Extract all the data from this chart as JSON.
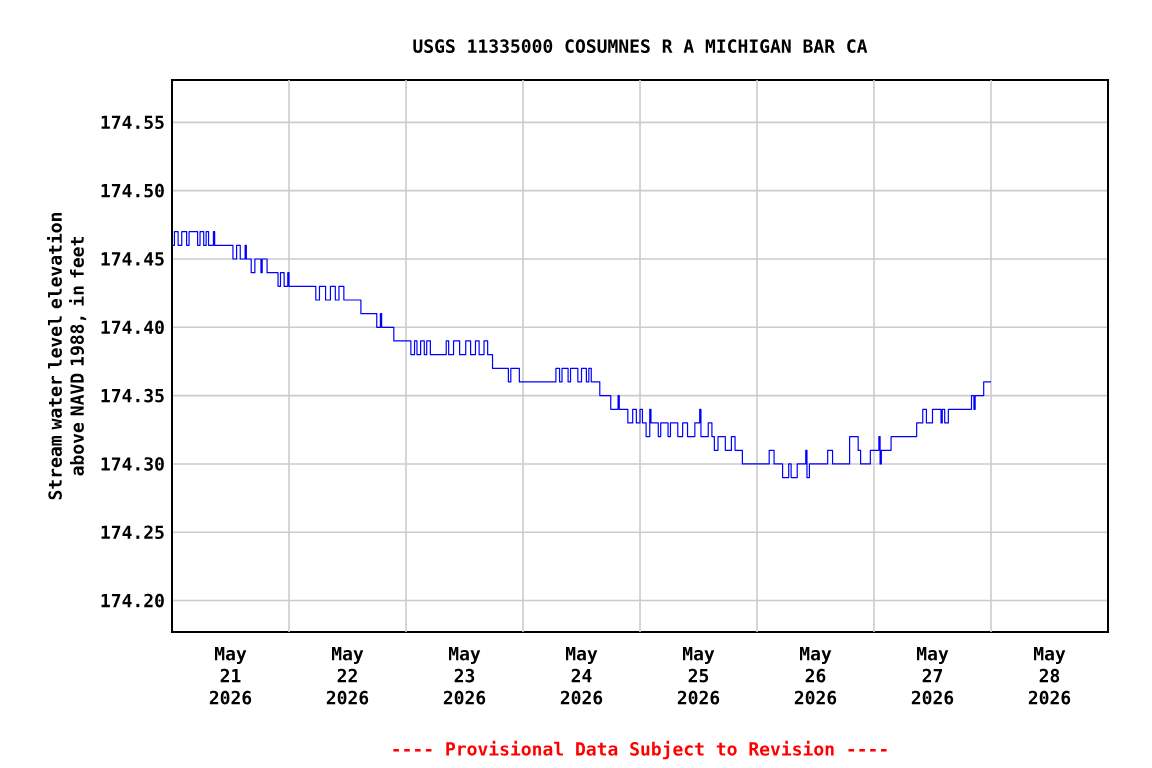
{
  "chart_data": {
    "type": "step",
    "title": "USGS 11335000 COSUMNES R A MICHIGAN BAR CA",
    "ylabel": "Stream water level elevation above NAVD 1988, in feet",
    "annotations": [
      "---- Provisional Data Subject to Revision ----"
    ],
    "xlim": [
      "2026-05-21T00:00",
      "2026-05-29T00:00"
    ],
    "ylim": [
      174.177,
      174.581
    ],
    "yticks": [
      {
        "value": 174.2,
        "label": "174.20"
      },
      174.25,
      {
        "value": 174.3,
        "label": "174.30"
      },
      174.35,
      {
        "value": 174.4,
        "label": "174.40"
      },
      174.45,
      {
        "value": 174.5,
        "label": "174.50"
      },
      174.55
    ],
    "xticks": [
      {
        "value": "2026-05-21T12:00",
        "label": "May 21 2026"
      },
      {
        "value": "2026-05-22T12:00",
        "label": "May 22 2026"
      },
      {
        "value": "2026-05-23T12:00",
        "label": "May 23 2026"
      },
      {
        "value": "2026-05-24T12:00",
        "label": "May 24 2026"
      },
      {
        "value": "2026-05-25T12:00",
        "label": "May 25 2026"
      },
      {
        "value": "2026-05-26T12:00",
        "label": "May 26 2026"
      },
      {
        "value": "2026-05-27T12:00",
        "label": "May 27 2026"
      },
      {
        "value": "2026-05-28T12:00",
        "label": "May 28 2026"
      },
      {
        "value": "2026-05-22T00:00",
        "label": null
      },
      {
        "value": "2026-05-23T00:00",
        "label": null
      },
      {
        "value": "2026-05-24T00:00",
        "label": null
      },
      {
        "value": "2026-05-25T00:00",
        "label": null
      },
      {
        "value": "2026-05-26T00:00",
        "label": null
      },
      {
        "value": "2026-05-27T00:00",
        "label": null
      },
      {
        "value": "2026-05-28T00:00",
        "label": null
      }
    ],
    "grid": true,
    "series": [
      {
        "color": "#0000ff",
        "x": [
          "2026-05-21T00:00",
          "2026-05-21T00:30",
          "2026-05-21T01:15",
          "2026-05-21T02:00",
          "2026-05-21T03:00",
          "2026-05-21T03:30",
          "2026-05-21T05:15",
          "2026-05-21T05:45",
          "2026-05-21T06:30",
          "2026-05-21T07:00",
          "2026-05-21T07:30",
          "2026-05-21T08:30",
          "2026-05-21T08:45",
          "2026-05-21T12:30",
          "2026-05-21T13:15",
          "2026-05-21T14:00",
          "2026-05-21T15:00",
          "2026-05-21T15:15",
          "2026-05-21T16:15",
          "2026-05-21T17:00",
          "2026-05-21T18:15",
          "2026-05-21T18:30",
          "2026-05-21T19:30",
          "2026-05-21T21:45",
          "2026-05-21T22:15",
          "2026-05-21T23:00",
          "2026-05-21T23:45",
          "2026-05-22T00:00",
          "2026-05-22T05:30",
          "2026-05-22T06:15",
          "2026-05-22T07:30",
          "2026-05-22T08:30",
          "2026-05-22T09:30",
          "2026-05-22T10:15",
          "2026-05-22T11:15",
          "2026-05-22T14:45",
          "2026-05-22T18:00",
          "2026-05-22T18:45",
          "2026-05-22T19:00",
          "2026-05-22T21:30",
          "2026-05-23T01:00",
          "2026-05-23T01:45",
          "2026-05-23T02:15",
          "2026-05-23T03:00",
          "2026-05-23T03:45",
          "2026-05-23T04:15",
          "2026-05-23T05:00",
          "2026-05-23T08:15",
          "2026-05-23T08:45",
          "2026-05-23T09:45",
          "2026-05-23T11:00",
          "2026-05-23T12:15",
          "2026-05-23T13:15",
          "2026-05-23T14:15",
          "2026-05-23T15:00",
          "2026-05-23T16:00",
          "2026-05-23T16:45",
          "2026-05-23T17:45",
          "2026-05-23T21:00",
          "2026-05-23T21:30",
          "2026-05-23T23:15",
          "2026-05-24T06:45",
          "2026-05-24T07:30",
          "2026-05-24T08:00",
          "2026-05-24T09:15",
          "2026-05-24T09:45",
          "2026-05-24T11:15",
          "2026-05-24T12:00",
          "2026-05-24T13:00",
          "2026-05-24T13:30",
          "2026-05-24T14:00",
          "2026-05-24T15:45",
          "2026-05-24T18:00",
          "2026-05-24T19:30",
          "2026-05-24T19:45",
          "2026-05-24T21:30",
          "2026-05-24T22:30",
          "2026-05-24T23:15",
          "2026-05-25T00:00",
          "2026-05-25T00:30",
          "2026-05-25T01:15",
          "2026-05-25T02:00",
          "2026-05-25T02:15",
          "2026-05-25T03:45",
          "2026-05-25T04:15",
          "2026-05-25T05:45",
          "2026-05-25T06:15",
          "2026-05-25T07:45",
          "2026-05-25T08:45",
          "2026-05-25T09:45",
          "2026-05-25T11:15",
          "2026-05-25T12:15",
          "2026-05-25T12:30",
          "2026-05-25T14:00",
          "2026-05-25T14:45",
          "2026-05-25T15:15",
          "2026-05-25T16:00",
          "2026-05-25T17:30",
          "2026-05-25T18:45",
          "2026-05-25T19:30",
          "2026-05-25T21:00",
          "2026-05-26T02:30",
          "2026-05-26T03:30",
          "2026-05-26T05:15",
          "2026-05-26T06:30",
          "2026-05-26T07:00",
          "2026-05-26T08:15",
          "2026-05-26T10:00",
          "2026-05-26T10:15",
          "2026-05-26T10:45",
          "2026-05-26T14:30",
          "2026-05-26T15:30",
          "2026-05-26T19:00",
          "2026-05-26T20:45",
          "2026-05-26T21:15",
          "2026-05-26T23:15",
          "2026-05-27T01:00",
          "2026-05-27T01:15",
          "2026-05-27T01:30",
          "2026-05-27T03:30",
          "2026-05-27T08:45",
          "2026-05-27T10:00",
          "2026-05-27T10:45",
          "2026-05-27T12:00",
          "2026-05-27T13:45",
          "2026-05-27T14:00",
          "2026-05-27T14:30",
          "2026-05-27T15:15",
          "2026-05-27T20:00",
          "2026-05-27T20:30",
          "2026-05-27T20:45",
          "2026-05-27T22:30",
          "2026-05-28T00:00"
        ],
        "values": [
          174.46,
          174.47,
          174.46,
          174.47,
          174.46,
          174.47,
          174.46,
          174.47,
          174.46,
          174.47,
          174.46,
          174.47,
          174.46,
          174.45,
          174.46,
          174.45,
          174.46,
          174.45,
          174.44,
          174.45,
          174.44,
          174.45,
          174.44,
          174.43,
          174.44,
          174.43,
          174.44,
          174.43,
          174.42,
          174.43,
          174.42,
          174.43,
          174.42,
          174.43,
          174.42,
          174.41,
          174.4,
          174.41,
          174.4,
          174.39,
          174.38,
          174.39,
          174.38,
          174.39,
          174.38,
          174.39,
          174.38,
          174.39,
          174.38,
          174.39,
          174.38,
          174.39,
          174.38,
          174.39,
          174.38,
          174.39,
          174.38,
          174.37,
          174.36,
          174.37,
          174.36,
          174.37,
          174.36,
          174.37,
          174.36,
          174.37,
          174.36,
          174.37,
          174.36,
          174.37,
          174.36,
          174.35,
          174.34,
          174.35,
          174.34,
          174.33,
          174.34,
          174.33,
          174.34,
          174.33,
          174.32,
          174.34,
          174.33,
          174.32,
          174.33,
          174.32,
          174.33,
          174.32,
          174.33,
          174.32,
          174.33,
          174.34,
          174.32,
          174.33,
          174.32,
          174.31,
          174.32,
          174.31,
          174.32,
          174.31,
          174.3,
          174.31,
          174.3,
          174.29,
          174.3,
          174.29,
          174.3,
          174.31,
          174.29,
          174.3,
          174.31,
          174.3,
          174.32,
          174.31,
          174.3,
          174.31,
          174.32,
          174.3,
          174.31,
          174.32,
          174.33,
          174.34,
          174.33,
          174.34,
          174.33,
          174.34,
          174.33,
          174.34,
          174.35,
          174.34,
          174.35,
          174.36,
          174.36
        ]
      }
    ]
  }
}
